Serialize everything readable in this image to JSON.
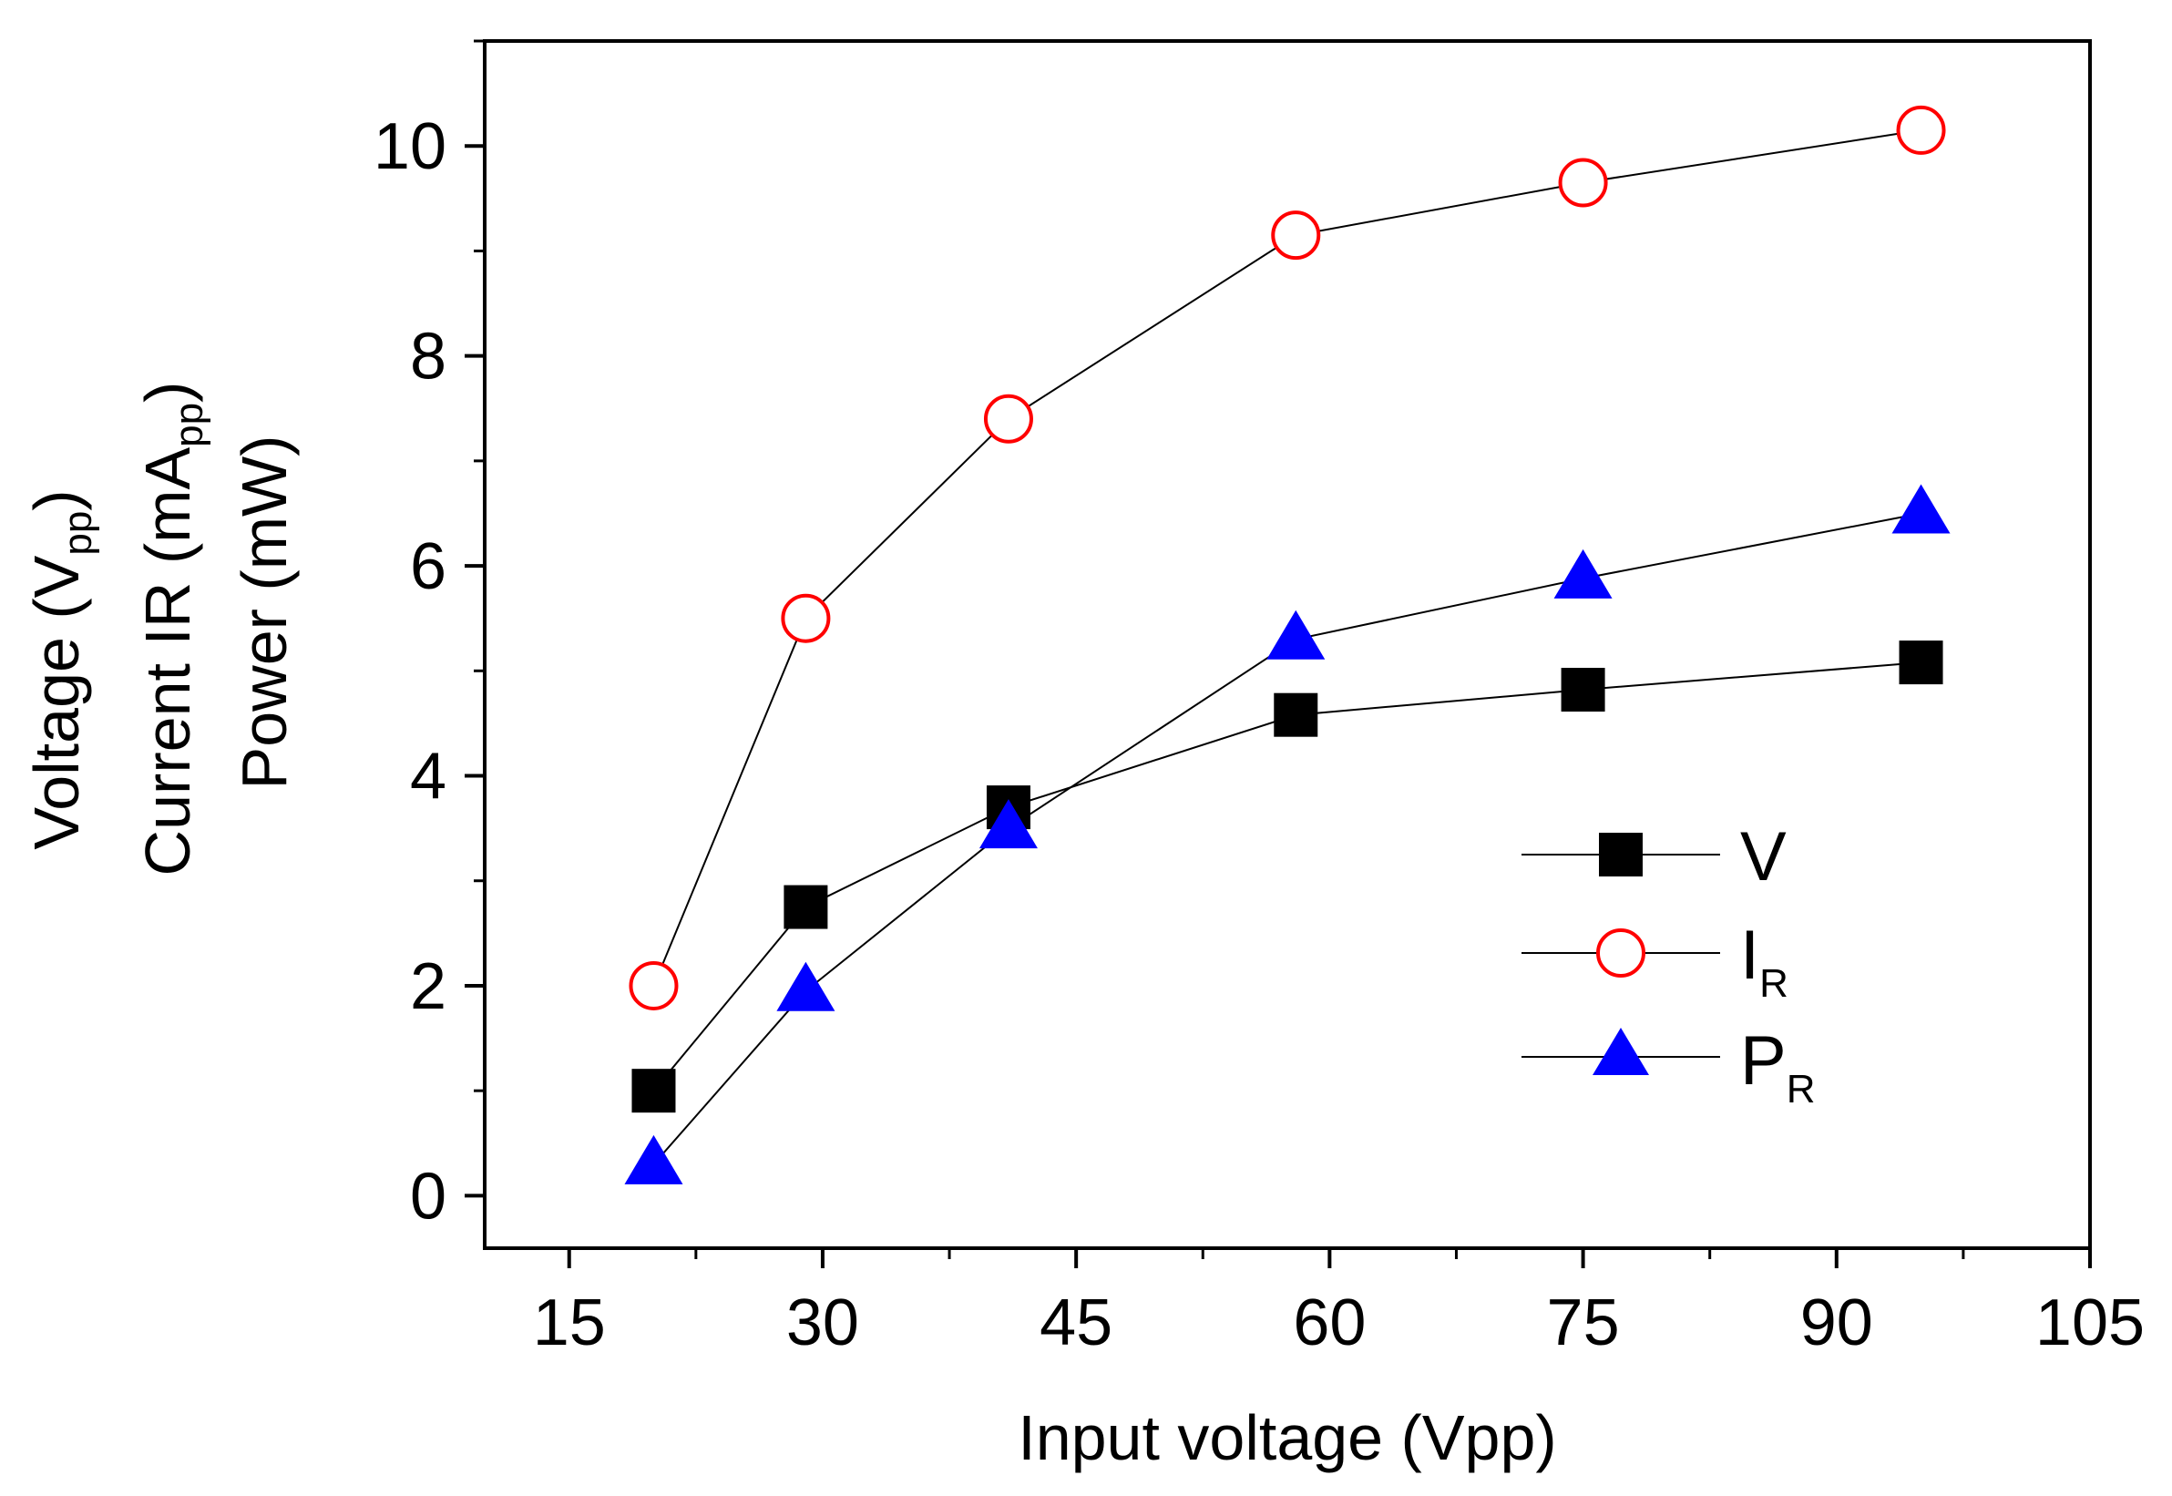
{
  "chart_data": {
    "type": "line",
    "title": "",
    "xlabel": "Input voltage (Vpp)",
    "ylabel_lines": [
      {
        "main": "Voltage (V",
        "sub": "pp",
        "tail": ")"
      },
      {
        "main": "Current IR (mA",
        "sub": "pp",
        "tail": ")"
      },
      {
        "main": "Power (mW)",
        "sub": "",
        "tail": ""
      }
    ],
    "xlim": [
      10,
      105
    ],
    "ylim": [
      -0.5,
      11
    ],
    "xticks": [
      15,
      30,
      45,
      60,
      75,
      90,
      105
    ],
    "xtick_labels": [
      "15",
      "30",
      "45",
      "60",
      "75",
      "90",
      "105"
    ],
    "yticks": [
      0,
      2,
      4,
      6,
      8,
      10
    ],
    "ytick_labels": [
      "0",
      "2",
      "4",
      "6",
      "8",
      "10"
    ],
    "x": [
      20,
      29,
      41,
      58,
      75,
      95
    ],
    "series": [
      {
        "name": "V",
        "sub": "",
        "marker": "square",
        "color": "#000000",
        "values": [
          1.0,
          2.75,
          3.7,
          4.58,
          4.82,
          5.08
        ]
      },
      {
        "name": "I",
        "sub": "R",
        "marker": "circle",
        "color": "#ff0000",
        "values": [
          2.0,
          5.5,
          7.4,
          9.15,
          9.65,
          10.15
        ]
      },
      {
        "name": "P",
        "sub": "R",
        "marker": "triangle",
        "color": "#0000ff",
        "values": [
          0.3,
          1.95,
          3.5,
          5.3,
          5.88,
          6.5
        ]
      }
    ],
    "legend_position": "lower-right",
    "grid": false
  }
}
